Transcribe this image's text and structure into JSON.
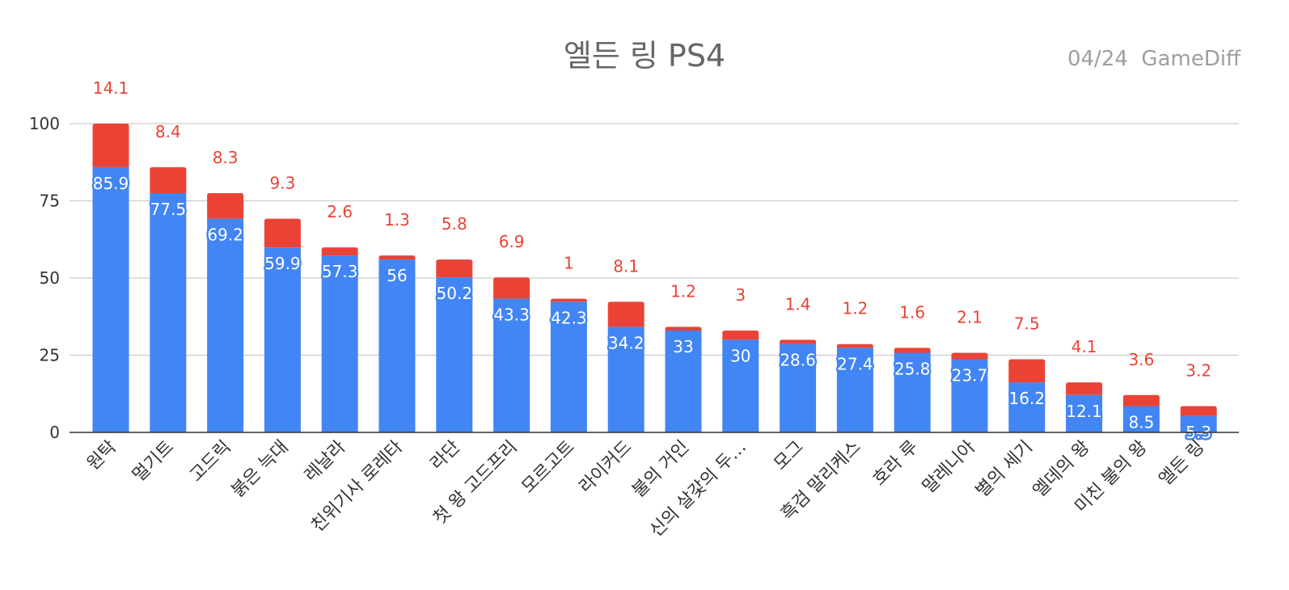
{
  "title": "엘든 링 PS4",
  "subtitle": "04/24  GameDiff",
  "colors": {
    "base": "#4285f4",
    "top": "#ea4335",
    "grid": "#cccccc",
    "axis": "#333333"
  },
  "chart_data": {
    "type": "bar",
    "stacked": true,
    "title": "엘든 링 PS4",
    "xlabel": "",
    "ylabel": "",
    "ylim": [
      0,
      100
    ],
    "yticks": [
      0,
      25,
      50,
      75,
      100
    ],
    "grid": true,
    "categories": [
      "원탁",
      "멀기트",
      "고드릭",
      "붉은 늑대",
      "레날라",
      "친위기사 로레타",
      "라단",
      "첫 왕 고드프리",
      "모르고트",
      "라이커드",
      "불의 거인",
      "신의 살갗의 두…",
      "모그",
      "흑검 말리케스",
      "호라 루",
      "말레니아",
      "별의 세기",
      "엘데의 왕",
      "미친 불의 왕",
      "엘든 링"
    ],
    "series": [
      {
        "values": [
          85.9,
          77.5,
          69.2,
          59.9,
          57.3,
          56,
          50.2,
          43.3,
          42.3,
          34.2,
          33,
          30,
          28.6,
          27.4,
          25.8,
          23.7,
          16.2,
          12.1,
          8.5,
          5.3
        ]
      },
      {
        "values": [
          14.1,
          8.4,
          8.3,
          9.3,
          2.6,
          1.3,
          5.8,
          6.9,
          1,
          8.1,
          1.2,
          3,
          1.4,
          1.2,
          1.6,
          2.1,
          7.5,
          4.1,
          3.6,
          3.2
        ]
      }
    ]
  }
}
